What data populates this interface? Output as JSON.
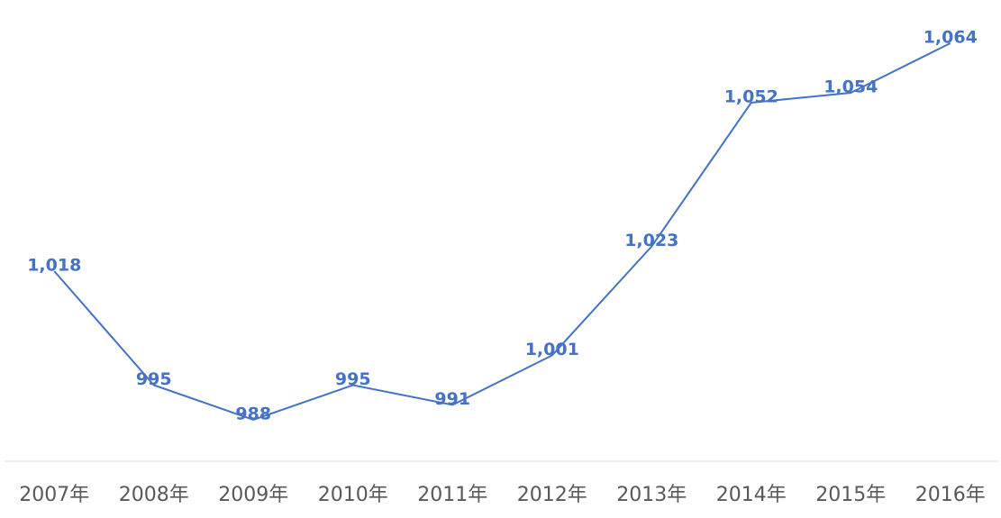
{
  "chart_data": {
    "type": "line",
    "categories": [
      "2007年",
      "2008年",
      "2009年",
      "2010年",
      "2011年",
      "2012年",
      "2013年",
      "2014年",
      "2015年",
      "2016年"
    ],
    "series": [
      {
        "color": "#4472c4",
        "values": [
          1018,
          995,
          988,
          995,
          991,
          1001,
          1023,
          1052,
          1054,
          1064
        ],
        "value_labels": [
          "1,018",
          "995",
          "988",
          "995",
          "991",
          "1,001",
          "1,023",
          "1,052",
          "1,054",
          "1,064"
        ]
      }
    ]
  }
}
